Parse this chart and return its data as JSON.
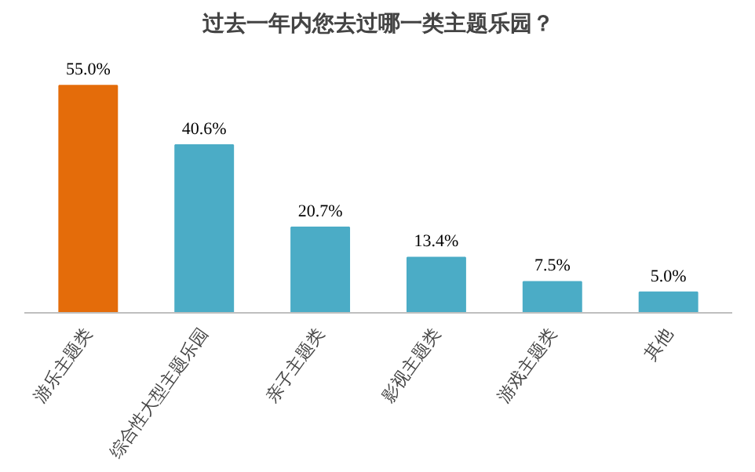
{
  "chart_data": {
    "type": "bar",
    "title": "过去一年内您去过哪一类主题乐园？",
    "categories": [
      "游乐主题类",
      "综合性大型主题乐园",
      "亲子主题类",
      "影视主题类",
      "游戏主题类",
      "其他"
    ],
    "values": [
      55.0,
      40.6,
      20.7,
      13.4,
      7.5,
      5.0
    ],
    "colors": [
      "#e46c0a",
      "#4bacc6",
      "#4bacc6",
      "#4bacc6",
      "#4bacc6",
      "#4bacc6"
    ],
    "value_labels": [
      "55.0%",
      "40.6%",
      "20.7%",
      "13.4%",
      "7.5%",
      "5.0%"
    ],
    "grid": false
  }
}
